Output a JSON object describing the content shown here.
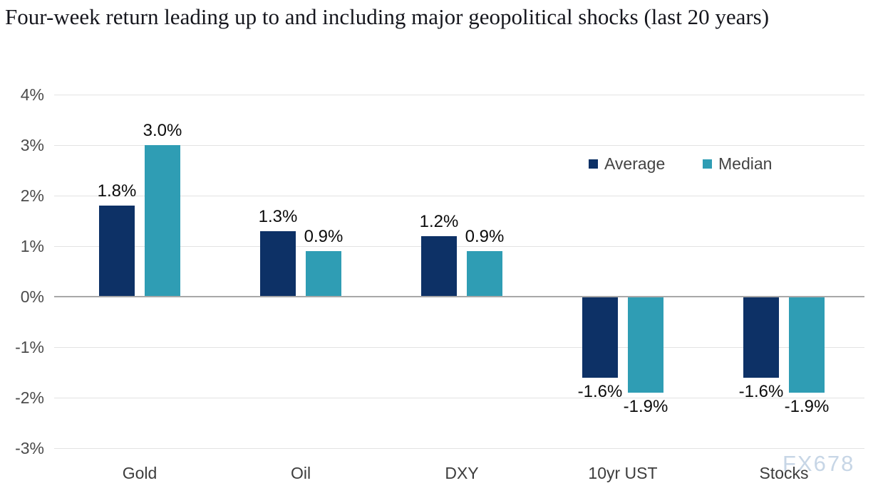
{
  "page": {
    "background": "#ffffff"
  },
  "chart_data": {
    "type": "bar",
    "title": "Four-week return leading up to and including major geopolitical shocks (last 20 years)",
    "categories": [
      "Gold",
      "Oil",
      "DXY",
      "10yr UST",
      "Stocks"
    ],
    "series": [
      {
        "name": "Average",
        "color": "#0d3166",
        "values": [
          1.8,
          1.3,
          1.2,
          -1.6,
          -1.6
        ],
        "labels": [
          "1.8%",
          "1.3%",
          "1.2%",
          "-1.6%",
          "-1.6%"
        ]
      },
      {
        "name": "Median",
        "color": "#2f9db4",
        "values": [
          3.0,
          0.9,
          0.9,
          -1.9,
          -1.9
        ],
        "labels": [
          "3.0%",
          "0.9%",
          "0.9%",
          "-1.9%",
          "-1.9%"
        ]
      }
    ],
    "y_ticks": [
      {
        "label": "4%",
        "value": 4
      },
      {
        "label": "3%",
        "value": 3
      },
      {
        "label": "2%",
        "value": 2
      },
      {
        "label": "1%",
        "value": 1
      },
      {
        "label": "0%",
        "value": 0
      },
      {
        "label": "-1%",
        "value": -1
      },
      {
        "label": "-2%",
        "value": -2
      },
      {
        "label": "-3%",
        "value": -3
      }
    ],
    "ylim": [
      -3,
      4
    ],
    "xlabel": "",
    "ylabel": "",
    "grid": true,
    "legend": {
      "entries": [
        "Average",
        "Median"
      ],
      "position": "upper-right"
    },
    "watermark": "FX678",
    "colors": {
      "gridline": "#e3e3e3",
      "zero_line": "#a8a8a8",
      "tick_text": "#4b4b4b",
      "category_text": "#3d3d3d",
      "data_label_text": "#0b0b0b",
      "legend_text": "#444444",
      "title_text": "#15161d",
      "watermark_text": "#c7d6e6"
    }
  }
}
